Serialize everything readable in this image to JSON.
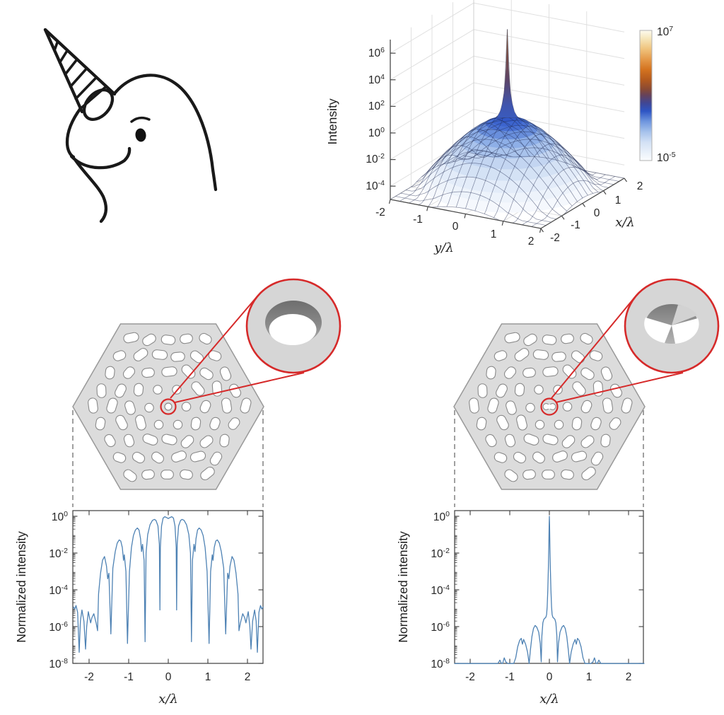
{
  "illustration": {
    "description": "hand-drawn narwhal head with spiral tusk"
  },
  "surface_plot": {
    "zlabel": "Intensity",
    "xlabel": "x/λ",
    "ylabel": "y/λ",
    "z_ticks": [
      {
        "b": "10",
        "e": "6"
      },
      {
        "b": "10",
        "e": "4"
      },
      {
        "b": "10",
        "e": "2"
      },
      {
        "b": "10",
        "e": "0"
      },
      {
        "b": "10",
        "e": "-2"
      },
      {
        "b": "10",
        "e": "-4"
      }
    ],
    "y_axis_ticks": [
      "-2",
      "-1",
      "0",
      "1",
      "2"
    ],
    "x_axis_ticks": [
      "-2",
      "-1",
      "0",
      "1",
      "2"
    ],
    "colorbar": {
      "top": {
        "b": "10",
        "e": "7"
      },
      "bottom": {
        "b": "10",
        "e": "-5"
      }
    }
  },
  "profile_plots": {
    "ylabel": "Normalized intensity",
    "xlabel": "x/λ",
    "y_ticks": [
      {
        "b": "10",
        "e": "0"
      },
      {
        "b": "10",
        "e": "-2"
      },
      {
        "b": "10",
        "e": "-4"
      },
      {
        "b": "10",
        "e": "-6"
      },
      {
        "b": "10",
        "e": "-8"
      }
    ],
    "x_ticks": [
      "-2",
      "-1",
      "0",
      "1",
      "2"
    ]
  },
  "structures": {
    "left": {
      "inset": "circular nanohole"
    },
    "right": {
      "inset": "bowtie nanohole"
    }
  },
  "colors": {
    "accent_red": "#d62a2a",
    "line_blue": "#4e82b4",
    "hex_fill": "#dcdcdc",
    "hole_stroke": "#8a8a8a"
  },
  "chart_data": [
    {
      "type": "surface",
      "zlabel": "Intensity",
      "xlabel": "x/λ",
      "ylabel": "y/λ",
      "x_range": [
        -2,
        2
      ],
      "y_range": [
        -2,
        2
      ],
      "z_log_range": [
        -5,
        7
      ],
      "colorbar_log_range": [
        -5,
        7
      ],
      "symmetry": "radial",
      "radial_profile": [
        [
          0,
          7
        ],
        [
          0.01,
          6
        ],
        [
          0.02,
          5
        ],
        [
          0.03,
          4.2
        ],
        [
          0.05,
          3.2
        ],
        [
          0.08,
          2.2
        ],
        [
          0.12,
          1.4
        ],
        [
          0.17,
          0.8
        ],
        [
          0.25,
          0.35
        ],
        [
          0.35,
          0.08
        ],
        [
          0.5,
          -0.1
        ],
        [
          0.7,
          -0.5
        ],
        [
          0.9,
          -0.95
        ],
        [
          1.1,
          -1.5
        ],
        [
          1.3,
          -2.1
        ],
        [
          1.5,
          -2.75
        ],
        [
          1.7,
          -3.45
        ],
        [
          1.85,
          -4.0
        ],
        [
          2.0,
          -4.6
        ],
        [
          2.2,
          -5
        ]
      ]
    },
    {
      "type": "line",
      "name": "circular-hole structure focal profile",
      "xlabel": "x/λ",
      "ylabel": "Normalized intensity",
      "xlim": [
        -2.4,
        2.4
      ],
      "ylim_log": [
        -8,
        0
      ],
      "symmetry": "even",
      "points": [
        [
          0,
          0.75
        ],
        [
          0.05,
          0.87
        ],
        [
          0.09,
          0.95
        ],
        [
          0.13,
          0.8
        ],
        [
          0.17,
          0.3
        ],
        [
          0.2,
          0.02
        ],
        [
          0.21,
          8e-06
        ],
        [
          0.225,
          0.03
        ],
        [
          0.26,
          0.3
        ],
        [
          0.31,
          0.6
        ],
        [
          0.35,
          0.68
        ],
        [
          0.4,
          0.6
        ],
        [
          0.46,
          0.35
        ],
        [
          0.52,
          0.1
        ],
        [
          0.56,
          0.01
        ],
        [
          0.585,
          1.5e-07
        ],
        [
          0.61,
          0.004
        ],
        [
          0.65,
          0.03
        ],
        [
          0.675,
          0.012
        ],
        [
          0.7,
          0.06
        ],
        [
          0.74,
          0.18
        ],
        [
          0.78,
          0.23
        ],
        [
          0.83,
          0.18
        ],
        [
          0.88,
          0.09
        ],
        [
          0.93,
          0.02
        ],
        [
          0.98,
          0.001
        ],
        [
          1.03,
          1.2e-07
        ],
        [
          1.07,
          0.001
        ],
        [
          1.11,
          0.008
        ],
        [
          1.13,
          0.004
        ],
        [
          1.16,
          0.02
        ],
        [
          1.2,
          0.045
        ],
        [
          1.24,
          0.052
        ],
        [
          1.29,
          0.035
        ],
        [
          1.34,
          0.012
        ],
        [
          1.4,
          0.0015
        ],
        [
          1.45,
          4e-07
        ],
        [
          1.5,
          0.0008
        ],
        [
          1.53,
          0.0004
        ],
        [
          1.56,
          0.002
        ],
        [
          1.61,
          0.0065
        ],
        [
          1.66,
          0.004
        ],
        [
          1.71,
          0.0008
        ],
        [
          1.76,
          6e-05
        ],
        [
          1.785,
          6e-07
        ],
        [
          1.82,
          1.5e-06
        ],
        [
          1.88,
          5e-06
        ],
        [
          1.93,
          3e-06
        ],
        [
          1.96,
          1.6e-06
        ],
        [
          2.02,
          6.5e-06
        ],
        [
          2.06,
          1e-06
        ],
        [
          2.09,
          6e-08
        ],
        [
          2.13,
          2e-06
        ],
        [
          2.18,
          8e-06
        ],
        [
          2.22,
          2e-06
        ],
        [
          2.25,
          4e-08
        ],
        [
          2.29,
          6e-06
        ],
        [
          2.33,
          1.4e-05
        ],
        [
          2.36,
          9e-06
        ],
        [
          2.4,
          1.2e-05
        ]
      ]
    },
    {
      "type": "line",
      "name": "bowtie-hole structure focal profile",
      "xlabel": "x/λ",
      "ylabel": "Normalized intensity",
      "xlim": [
        -2.4,
        2.4
      ],
      "ylim_log": [
        -8,
        0
      ],
      "symmetry": "even",
      "points": [
        [
          0,
          1.0
        ],
        [
          0.006,
          0.35
        ],
        [
          0.015,
          0.02
        ],
        [
          0.025,
          0.0015
        ],
        [
          0.04,
          0.0001
        ],
        [
          0.055,
          1.2e-05
        ],
        [
          0.07,
          4.5e-06
        ],
        [
          0.09,
          3.2e-06
        ],
        [
          0.11,
          2.9e-06
        ],
        [
          0.14,
          2.5e-06
        ],
        [
          0.165,
          1.6e-06
        ],
        [
          0.19,
          3e-07
        ],
        [
          0.205,
          1.2e-08
        ],
        [
          0.23,
          1.2e-07
        ],
        [
          0.27,
          5e-07
        ],
        [
          0.32,
          9.5e-07
        ],
        [
          0.36,
          1.15e-06
        ],
        [
          0.4,
          8e-07
        ],
        [
          0.44,
          3e-07
        ],
        [
          0.48,
          5e-08
        ],
        [
          0.51,
          8e-09
        ],
        [
          0.55,
          4e-08
        ],
        [
          0.6,
          1.1e-07
        ],
        [
          0.65,
          2e-07
        ],
        [
          0.68,
          1.1e-07
        ],
        [
          0.71,
          2.3e-07
        ],
        [
          0.75,
          1.8e-07
        ],
        [
          0.8,
          8e-08
        ],
        [
          0.85,
          2e-08
        ],
        [
          0.9,
          3e-09
        ],
        [
          0.97,
          1e-09
        ],
        [
          1.05,
          4e-09
        ],
        [
          1.1,
          1.2e-08
        ],
        [
          1.14,
          2e-08
        ],
        [
          1.18,
          1e-08
        ],
        [
          1.21,
          4e-09
        ],
        [
          1.25,
          1.5e-08
        ],
        [
          1.3,
          6e-09
        ],
        [
          1.35,
          1e-09
        ],
        [
          1.6,
          1e-09
        ],
        [
          2.4,
          1e-09
        ]
      ]
    }
  ]
}
